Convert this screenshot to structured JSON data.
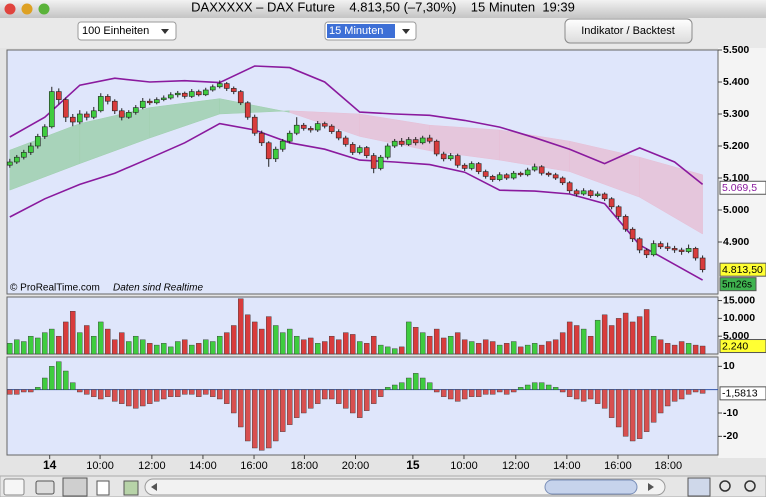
{
  "window": {
    "title": "DAXXXXX – DAX Future    4.813,50 (–7,30%)    15 Minuten  19:39"
  },
  "toolbar": {
    "units": "100 Einheiten",
    "interval": "15 Minuten",
    "button": "Indikator / Backtest"
  },
  "chart_data": [
    {
      "type": "candlestick",
      "xlim": [
        -0.4,
        101.2
      ],
      "ylim": [
        4737.5,
        5500
      ],
      "yticks": [
        {
          "value": 5500,
          "label": "5.500"
        },
        {
          "value": 5400,
          "label": "5.400"
        },
        {
          "value": 5300,
          "label": "5.300"
        },
        {
          "value": 5200,
          "label": "5.200"
        },
        {
          "value": 5100,
          "label": "5.100"
        },
        {
          "value": 5000,
          "label": "5.000"
        },
        {
          "value": 4900,
          "label": "4.900"
        }
      ],
      "color_up": "#3fcc3f",
      "color_down": "#d83c3c",
      "ohlc": [
        [
          5140,
          5160,
          5132,
          5150
        ],
        [
          5150,
          5172,
          5144,
          5165
        ],
        [
          5165,
          5188,
          5158,
          5180
        ],
        [
          5180,
          5210,
          5172,
          5200
        ],
        [
          5200,
          5238,
          5192,
          5230
        ],
        [
          5230,
          5268,
          5222,
          5260
        ],
        [
          5260,
          5385,
          5255,
          5370
        ],
        [
          5370,
          5380,
          5330,
          5345
        ],
        [
          5345,
          5352,
          5275,
          5290
        ],
        [
          5290,
          5300,
          5262,
          5275
        ],
        [
          5275,
          5312,
          5268,
          5300
        ],
        [
          5300,
          5308,
          5280,
          5290
        ],
        [
          5290,
          5322,
          5284,
          5310
        ],
        [
          5310,
          5365,
          5305,
          5355
        ],
        [
          5355,
          5362,
          5330,
          5340
        ],
        [
          5340,
          5346,
          5300,
          5310
        ],
        [
          5310,
          5318,
          5280,
          5290
        ],
        [
          5290,
          5312,
          5285,
          5305
        ],
        [
          5305,
          5328,
          5298,
          5320
        ],
        [
          5320,
          5350,
          5315,
          5340
        ],
        [
          5340,
          5348,
          5328,
          5335
        ],
        [
          5335,
          5352,
          5330,
          5345
        ],
        [
          5345,
          5358,
          5340,
          5350
        ],
        [
          5350,
          5368,
          5345,
          5360
        ],
        [
          5360,
          5372,
          5352,
          5365
        ],
        [
          5365,
          5370,
          5348,
          5355
        ],
        [
          5355,
          5378,
          5350,
          5370
        ],
        [
          5370,
          5376,
          5355,
          5360
        ],
        [
          5360,
          5382,
          5356,
          5375
        ],
        [
          5375,
          5392,
          5370,
          5385
        ],
        [
          5385,
          5405,
          5380,
          5395
        ],
        [
          5395,
          5400,
          5372,
          5380
        ],
        [
          5380,
          5386,
          5362,
          5370
        ],
        [
          5370,
          5375,
          5328,
          5335
        ],
        [
          5335,
          5340,
          5282,
          5290
        ],
        [
          5290,
          5298,
          5232,
          5240
        ],
        [
          5240,
          5248,
          5200,
          5210
        ],
        [
          5210,
          5215,
          5135,
          5160
        ],
        [
          5160,
          5198,
          5150,
          5190
        ],
        [
          5190,
          5222,
          5182,
          5215
        ],
        [
          5215,
          5248,
          5208,
          5240
        ],
        [
          5240,
          5290,
          5234,
          5265
        ],
        [
          5265,
          5272,
          5248,
          5255
        ],
        [
          5255,
          5262,
          5242,
          5250
        ],
        [
          5250,
          5278,
          5244,
          5270
        ],
        [
          5270,
          5276,
          5255,
          5262
        ],
        [
          5262,
          5268,
          5238,
          5245
        ],
        [
          5245,
          5252,
          5218,
          5225
        ],
        [
          5225,
          5232,
          5198,
          5205
        ],
        [
          5205,
          5212,
          5172,
          5180
        ],
        [
          5180,
          5202,
          5174,
          5195
        ],
        [
          5195,
          5200,
          5162,
          5170
        ],
        [
          5170,
          5178,
          5115,
          5130
        ],
        [
          5130,
          5172,
          5124,
          5165
        ],
        [
          5165,
          5208,
          5158,
          5200
        ],
        [
          5200,
          5222,
          5194,
          5215
        ],
        [
          5215,
          5225,
          5198,
          5205
        ],
        [
          5205,
          5228,
          5200,
          5220
        ],
        [
          5220,
          5228,
          5202,
          5210
        ],
        [
          5210,
          5232,
          5205,
          5225
        ],
        [
          5225,
          5235,
          5208,
          5215
        ],
        [
          5215,
          5220,
          5168,
          5175
        ],
        [
          5175,
          5182,
          5152,
          5160
        ],
        [
          5160,
          5178,
          5154,
          5170
        ],
        [
          5170,
          5176,
          5132,
          5140
        ],
        [
          5140,
          5146,
          5122,
          5130
        ],
        [
          5130,
          5152,
          5124,
          5145
        ],
        [
          5145,
          5150,
          5112,
          5120
        ],
        [
          5120,
          5126,
          5098,
          5105
        ],
        [
          5105,
          5110,
          5088,
          5095
        ],
        [
          5095,
          5118,
          5090,
          5110
        ],
        [
          5110,
          5115,
          5094,
          5100
        ],
        [
          5100,
          5122,
          5095,
          5115
        ],
        [
          5115,
          5120,
          5104,
          5110
        ],
        [
          5110,
          5132,
          5105,
          5125
        ],
        [
          5125,
          5145,
          5120,
          5135
        ],
        [
          5135,
          5140,
          5108,
          5115
        ],
        [
          5115,
          5120,
          5104,
          5110
        ],
        [
          5110,
          5116,
          5094,
          5100
        ],
        [
          5100,
          5105,
          5078,
          5085
        ],
        [
          5085,
          5090,
          5052,
          5060
        ],
        [
          5060,
          5066,
          5042,
          5050
        ],
        [
          5050,
          5068,
          5045,
          5060
        ],
        [
          5060,
          5064,
          5038,
          5045
        ],
        [
          5045,
          5058,
          5040,
          5050
        ],
        [
          5050,
          5055,
          5028,
          5035
        ],
        [
          5035,
          5040,
          5002,
          5010
        ],
        [
          5010,
          5015,
          4972,
          4980
        ],
        [
          4980,
          4986,
          4932,
          4940
        ],
        [
          4940,
          4946,
          4900,
          4910
        ],
        [
          4910,
          4915,
          4865,
          4875
        ],
        [
          4875,
          4880,
          4850,
          4860
        ],
        [
          4860,
          4905,
          4855,
          4895
        ],
        [
          4895,
          4902,
          4878,
          4885
        ],
        [
          4885,
          4898,
          4872,
          4880
        ],
        [
          4880,
          4888,
          4866,
          4875
        ],
        [
          4875,
          4882,
          4860,
          4870
        ],
        [
          4870,
          4892,
          4865,
          4880
        ],
        [
          4880,
          4885,
          4842,
          4850
        ],
        [
          4850,
          4858,
          4805,
          4813.5
        ]
      ],
      "cloud": {
        "x": [
          0,
          10,
          20,
          30,
          40,
          50,
          60,
          70,
          80,
          90,
          99
        ],
        "a": [
          5187,
          5270,
          5320,
          5348,
          5305,
          5230,
          5185,
          5156,
          5120,
          5040,
          4925
        ],
        "b": [
          5062,
          5145,
          5225,
          5300,
          5310,
          5300,
          5265,
          5250,
          5215,
          5165,
          5110
        ],
        "colors": [
          "#9fcfae",
          "#e6bfd6"
        ]
      },
      "lines": [
        {
          "color": "#8a1a9e",
          "x": [
            0,
            5,
            10,
            15,
            20,
            25,
            30,
            35,
            40,
            45,
            50,
            55,
            60,
            65,
            70,
            75,
            80,
            85,
            90,
            95,
            99
          ],
          "values": [
            5228,
            5290,
            5390,
            5412,
            5400,
            5404,
            5398,
            5450,
            5445,
            5400,
            5306,
            5300,
            5296,
            5280,
            5259,
            5226,
            5190,
            5145,
            5194,
            5150,
            5080
          ]
        },
        {
          "color": "#8a1a9e",
          "x": [
            0,
            5,
            10,
            15,
            20,
            25,
            30,
            35,
            40,
            45,
            50,
            55,
            60,
            65,
            70,
            75,
            80,
            85,
            90,
            95,
            99
          ],
          "values": [
            4978,
            5035,
            5080,
            5115,
            5162,
            5210,
            5270,
            5250,
            5210,
            5190,
            5156,
            5150,
            5142,
            5118,
            5062,
            5059,
            5050,
            5020,
            4891,
            4830,
            4781
          ]
        }
      ],
      "last_labels": [
        {
          "value": 5069.5,
          "label": "5.069,5",
          "color": "#ffffff",
          "text_color": "#8a1a9e"
        },
        {
          "value": 4813.5,
          "label": "4.813,50",
          "color": "#ffff33",
          "text_color": "#000000"
        }
      ],
      "countdown": "5m26s",
      "footer": [
        "© ProRealTime.com",
        "Daten sind Realtime"
      ]
    },
    {
      "type": "volume",
      "xlim": [
        -0.4,
        101.2
      ],
      "ylim": [
        0,
        16000
      ],
      "yticks": [
        {
          "value": 15000,
          "label": "15.000"
        },
        {
          "value": 10000,
          "label": "10.000"
        },
        {
          "value": 5000,
          "label": "5.000"
        }
      ],
      "values": [
        3000,
        4000,
        3500,
        5000,
        4500,
        6000,
        7000,
        5000,
        9000,
        12000,
        6000,
        8000,
        5000,
        9000,
        7000,
        4000,
        6000,
        3500,
        5000,
        4000,
        3000,
        2500,
        3000,
        2000,
        3500,
        4000,
        2500,
        3000,
        4000,
        3500,
        5000,
        6000,
        8000,
        15500,
        11000,
        9000,
        7000,
        10500,
        8000,
        6000,
        7000,
        5000,
        4000,
        4500,
        3000,
        3500,
        5000,
        4000,
        6000,
        5500,
        3500,
        3000,
        5000,
        2500,
        2000,
        1500,
        2000,
        9000,
        7500,
        6000,
        5000,
        7000,
        4500,
        5000,
        6000,
        4000,
        3500,
        3000,
        4000,
        3500,
        2500,
        3000,
        3500,
        2000,
        2500,
        3000,
        2500,
        3500,
        4000,
        6000,
        9000,
        8000,
        7000,
        5000,
        9500,
        11000,
        8000,
        10000,
        11500,
        9000,
        10500,
        12500,
        5000,
        4000,
        3000,
        2500,
        3500,
        3000,
        2500,
        2240
      ],
      "last_label": {
        "value": 2240,
        "label": "2.240",
        "color": "#ffff33"
      }
    },
    {
      "type": "oscillator",
      "xlim": [
        -0.4,
        101.2
      ],
      "ylim": [
        -28,
        14
      ],
      "yticks": [
        10,
        -10,
        -20
      ],
      "colors": [
        "#3fcc3f",
        "#d85050"
      ],
      "values": [
        -2,
        -2,
        -1,
        -1,
        1,
        5,
        10,
        12,
        8,
        3,
        -1,
        -2,
        -3,
        -4,
        -3,
        -5,
        -6,
        -7,
        -8,
        -7,
        -6,
        -5,
        -4,
        -3,
        -3,
        -2,
        -2,
        -3,
        -2,
        -3,
        -4,
        -6,
        -10,
        -16,
        -22,
        -25,
        -26,
        -25,
        -22,
        -18,
        -15,
        -12,
        -10,
        -8,
        -6,
        -4,
        -4,
        -6,
        -8,
        -10,
        -12,
        -9,
        -6,
        -3,
        1,
        2,
        3,
        5,
        7,
        5,
        3,
        -1,
        -3,
        -4,
        -5,
        -4,
        -3,
        -3,
        -2,
        -2,
        -1,
        -2,
        -1,
        1,
        2,
        3,
        3,
        2,
        1,
        -1,
        -3,
        -4,
        -5,
        -4,
        -6,
        -8,
        -12,
        -16,
        -20,
        -22,
        -21,
        -18,
        -14,
        -10,
        -7,
        -5,
        -4,
        -2,
        -1,
        -1.5813
      ],
      "last_label": {
        "value": -1.5813,
        "label": "-1,5813",
        "color": "#ffffff"
      },
      "xticks": [
        {
          "value": 5.7,
          "label": "14",
          "bold": true
        },
        {
          "value": 12.9,
          "label": "10:00"
        },
        {
          "value": 20.3,
          "label": "12:00"
        },
        {
          "value": 27.6,
          "label": "14:00"
        },
        {
          "value": 34.9,
          "label": "16:00"
        },
        {
          "value": 42.1,
          "label": "18:00"
        },
        {
          "value": 49.4,
          "label": "20:00"
        },
        {
          "value": 57.6,
          "label": "15",
          "bold": true
        },
        {
          "value": 64.9,
          "label": "10:00"
        },
        {
          "value": 72.3,
          "label": "12:00"
        },
        {
          "value": 79.6,
          "label": "14:00"
        },
        {
          "value": 86.9,
          "label": "16:00"
        },
        {
          "value": 94.1,
          "label": "18:00"
        }
      ]
    }
  ]
}
